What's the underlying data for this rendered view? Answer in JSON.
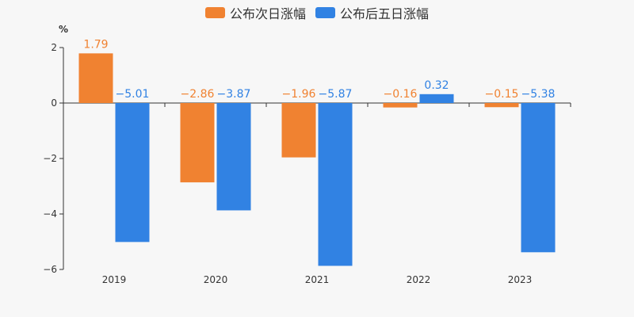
{
  "chart_data": {
    "type": "bar",
    "title": "",
    "xlabel": "",
    "ylabel": "%",
    "categories": [
      "2019",
      "2020",
      "2021",
      "2022",
      "2023"
    ],
    "series": [
      {
        "name": "公布次日涨幅",
        "color": "#f08231",
        "values": [
          1.79,
          -2.86,
          -1.96,
          -0.16,
          -0.15
        ],
        "labels": [
          "1.79",
          "−2.86",
          "−1.96",
          "−0.16",
          "−0.15"
        ]
      },
      {
        "name": "公布后五日涨幅",
        "color": "#3182e3",
        "values": [
          -5.01,
          -3.87,
          -5.87,
          0.32,
          -5.38
        ],
        "labels": [
          "−5.01",
          "−3.87",
          "−5.87",
          "0.32",
          "−5.38"
        ]
      }
    ],
    "ylim": [
      -6,
      2
    ],
    "yticks": [
      2,
      0,
      -2,
      -4,
      -6
    ],
    "ytick_labels": [
      "2",
      "0",
      "−2",
      "−4",
      "−6"
    ],
    "grid": false,
    "legend_position": "top-center"
  }
}
